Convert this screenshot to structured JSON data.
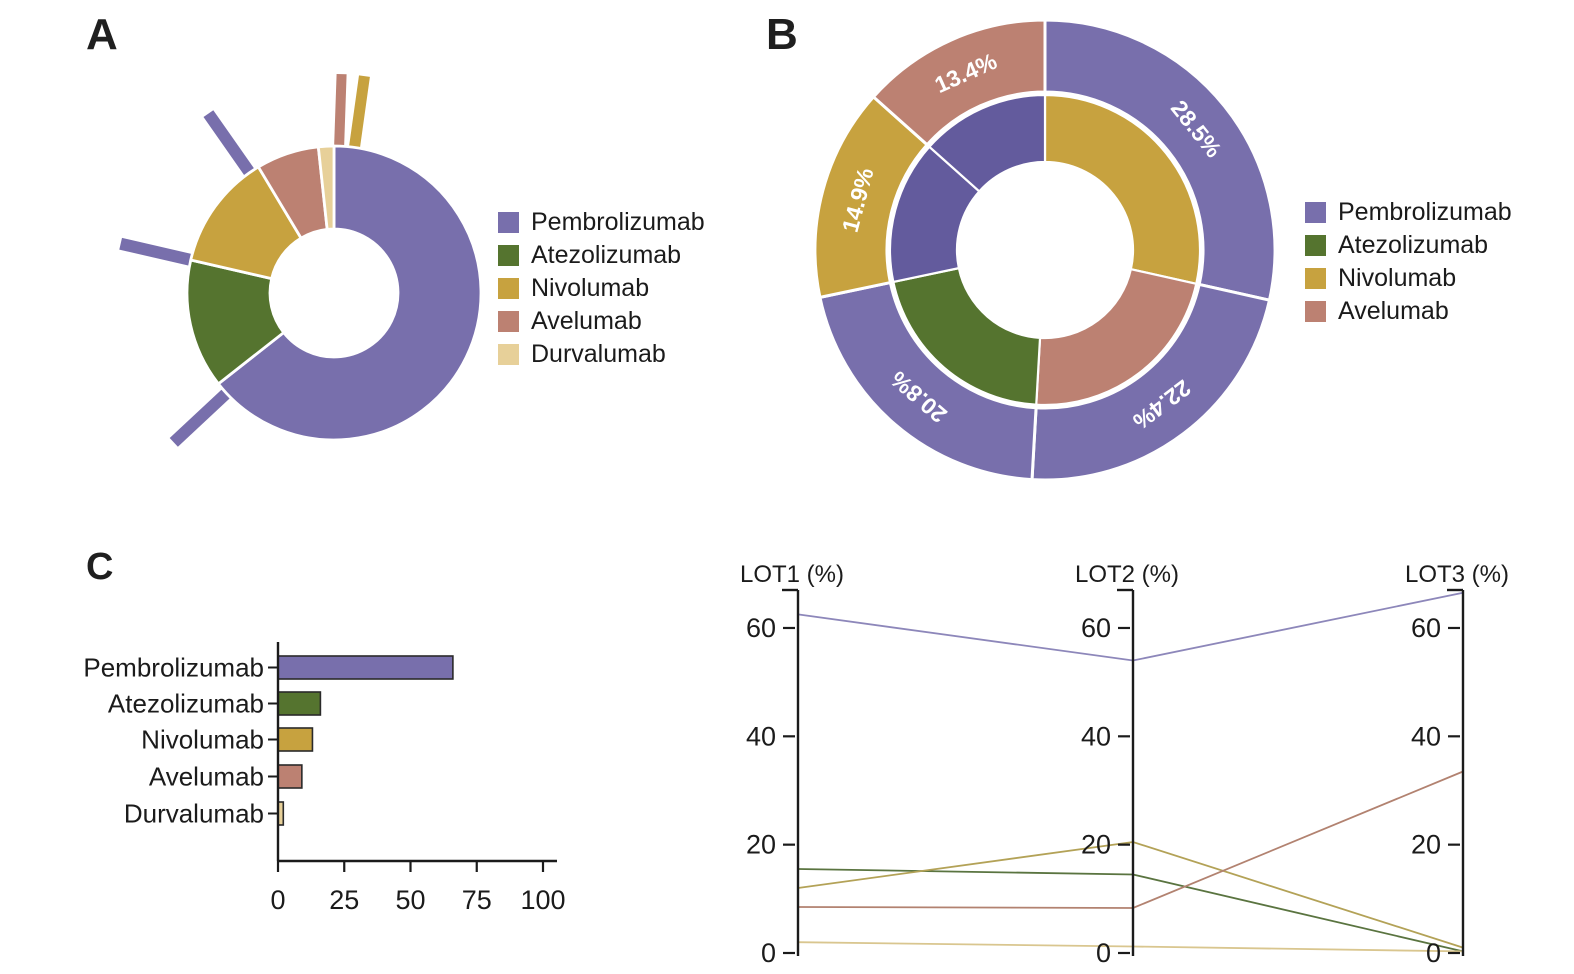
{
  "palette": {
    "pembrolizumab": "#786FAC",
    "atezolizumab": "#55742F",
    "nivolumab": "#C7A23F",
    "avelumab": "#BC8172",
    "durvalumab": "#E7D099",
    "inner_purple": "#635B9D",
    "axis_black": "#1B1B1B",
    "bar_outline": "#2A2A2A",
    "label_white": "#FFFFFF"
  },
  "panel_labels": {
    "a": "A",
    "b": "B",
    "c": "C"
  },
  "chart_data": [
    {
      "panel": "A",
      "type": "pie",
      "subtype": "donut-with-spokes",
      "categories": [
        "Pembrolizumab",
        "Atezolizumab",
        "Nivolumab",
        "Avelumab",
        "Durvalumab"
      ],
      "values_pct": [
        64.4,
        14.2,
        12.8,
        6.9,
        1.7
      ],
      "color_keys": [
        "pembrolizumab",
        "atezolizumab",
        "nivolumab",
        "avelumab",
        "durvalumab"
      ],
      "start_angle_deg": 0,
      "direction": "clockwise",
      "spokes": [
        {
          "color_key": "avelumab",
          "bearing_deg": 2,
          "width": 10
        },
        {
          "color_key": "nivolumab",
          "bearing_deg": 8,
          "width": 11
        },
        {
          "color_key": "pembrolizumab",
          "bearing_deg": 227,
          "width": 12
        },
        {
          "color_key": "pembrolizumab",
          "bearing_deg": 283,
          "width": 12
        },
        {
          "color_key": "pembrolizumab",
          "bearing_deg": 325,
          "width": 12
        }
      ],
      "legend": [
        "Pembrolizumab",
        "Atezolizumab",
        "Nivolumab",
        "Avelumab",
        "Durvalumab"
      ],
      "legend_position": "right"
    },
    {
      "panel": "B",
      "type": "pie",
      "subtype": "nested-donut",
      "outer_ring": [
        {
          "label": "28.5%",
          "value": 28.5,
          "color_key": "pembrolizumab"
        },
        {
          "label": "22.4%",
          "value": 22.4,
          "color_key": "pembrolizumab"
        },
        {
          "label": "20.8%",
          "value": 20.8,
          "color_key": "pembrolizumab"
        },
        {
          "label": "14.9%",
          "value": 14.9,
          "color_key": "nivolumab"
        },
        {
          "label": "13.4%",
          "value": 13.4,
          "color_key": "avelumab"
        }
      ],
      "inner_ring": [
        {
          "value": 28.5,
          "color_key": "nivolumab"
        },
        {
          "value": 22.4,
          "color_key": "avelumab"
        },
        {
          "value": 20.8,
          "color_key": "atezolizumab"
        },
        {
          "value": 14.9,
          "color_key": "inner_purple"
        },
        {
          "value": 13.4,
          "color_key": "inner_purple"
        }
      ],
      "legend": [
        "Pembrolizumab",
        "Atezolizumab",
        "Nivolumab",
        "Avelumab"
      ],
      "legend_position": "right"
    },
    {
      "panel": "C-left",
      "type": "bar",
      "orientation": "horizontal",
      "categories": [
        "Pembrolizumab",
        "Atezolizumab",
        "Nivolumab",
        "Avelumab",
        "Durvalumab"
      ],
      "values": [
        66,
        16,
        13,
        9,
        2
      ],
      "color_keys": [
        "pembrolizumab",
        "atezolizumab",
        "nivolumab",
        "avelumab",
        "durvalumab"
      ],
      "xticks": [
        0,
        25,
        50,
        75,
        100
      ],
      "xlim": [
        0,
        105
      ],
      "grid": false
    },
    {
      "panel": "C-right",
      "type": "line",
      "subtype": "parallel-coordinates",
      "axes": [
        "LOT1 (%)",
        "LOT2 (%)",
        "LOT3 (%)"
      ],
      "yticks": [
        0,
        20,
        40,
        60
      ],
      "ylim": [
        0,
        67
      ],
      "grid": false,
      "series": [
        {
          "name": "Pembrolizumab",
          "color": "#8D87BA",
          "values": [
            62.5,
            54,
            66.5
          ]
        },
        {
          "name": "Atezolizumab",
          "color": "#5A7440",
          "values": [
            15.5,
            14.5,
            0.3
          ]
        },
        {
          "name": "Nivolumab",
          "color": "#B3A257",
          "values": [
            12,
            20.5,
            1
          ]
        },
        {
          "name": "Avelumab",
          "color": "#B28270",
          "values": [
            8.5,
            8.3,
            33.5
          ]
        },
        {
          "name": "Durvalumab",
          "color": "#D9C68F",
          "values": [
            2,
            1.2,
            0.3
          ]
        }
      ]
    }
  ]
}
